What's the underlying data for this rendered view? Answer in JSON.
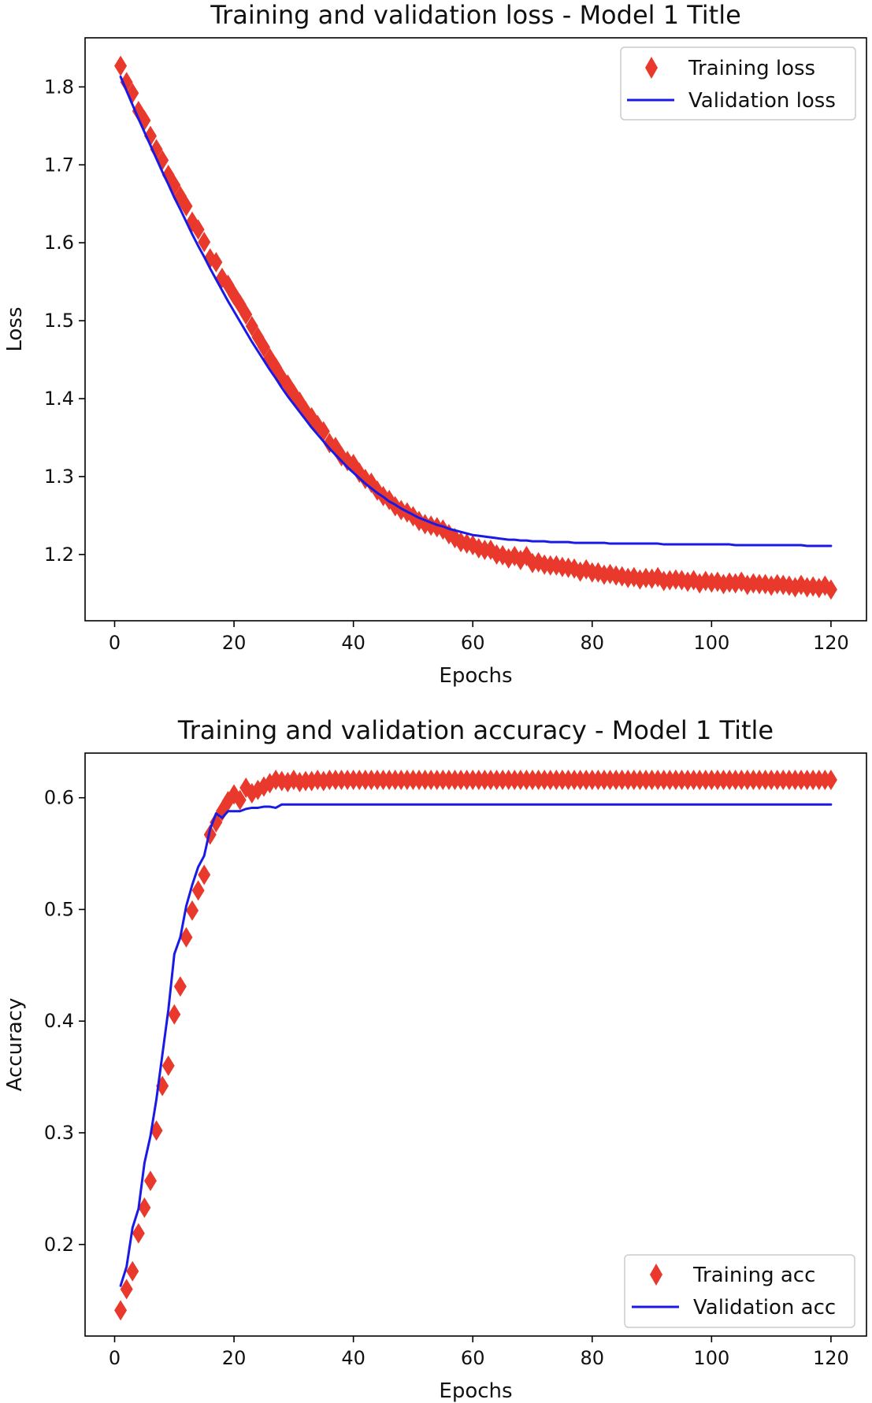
{
  "chart_data": [
    {
      "type": "line",
      "title": "Training and validation loss - Model 1 Title",
      "xlabel": "Epochs",
      "ylabel": "Loss",
      "xlim": [
        -4.95,
        125.95
      ],
      "ylim": [
        1.115,
        1.863
      ],
      "xticks": [
        0,
        20,
        40,
        60,
        80,
        100,
        120
      ],
      "yticks": [
        1.2,
        1.3,
        1.4,
        1.5,
        1.6,
        1.7,
        1.8
      ],
      "xtick_labels": [
        "0",
        "20",
        "40",
        "60",
        "80",
        "100",
        "120"
      ],
      "ytick_labels": [
        "1.2",
        "1.3",
        "1.4",
        "1.5",
        "1.6",
        "1.7",
        "1.8"
      ],
      "grid": false,
      "legend_position": "top-right",
      "series": [
        {
          "name": "Training loss",
          "style": "diamond markers",
          "color": "#e8392c",
          "x": [
            1,
            2,
            3,
            4,
            5,
            6,
            7,
            8,
            9,
            10,
            11,
            12,
            13,
            14,
            15,
            16,
            17,
            18,
            19,
            20,
            21,
            22,
            23,
            24,
            25,
            26,
            27,
            28,
            29,
            30,
            31,
            32,
            33,
            34,
            35,
            36,
            37,
            38,
            39,
            40,
            41,
            42,
            43,
            44,
            45,
            46,
            47,
            48,
            49,
            50,
            51,
            52,
            53,
            54,
            55,
            56,
            57,
            58,
            59,
            60,
            61,
            62,
            63,
            64,
            65,
            66,
            67,
            68,
            69,
            70,
            71,
            72,
            73,
            74,
            75,
            76,
            77,
            78,
            79,
            80,
            81,
            82,
            83,
            84,
            85,
            86,
            87,
            88,
            89,
            90,
            91,
            92,
            93,
            94,
            95,
            96,
            97,
            98,
            99,
            100,
            101,
            102,
            103,
            104,
            105,
            106,
            107,
            108,
            109,
            110,
            111,
            112,
            113,
            114,
            115,
            116,
            117,
            118,
            119,
            120
          ],
          "values": [
            1.827,
            1.806,
            1.792,
            1.769,
            1.757,
            1.737,
            1.72,
            1.706,
            1.687,
            1.674,
            1.66,
            1.647,
            1.627,
            1.617,
            1.601,
            1.58,
            1.575,
            1.555,
            1.546,
            1.533,
            1.521,
            1.508,
            1.493,
            1.479,
            1.466,
            1.452,
            1.44,
            1.427,
            1.418,
            1.406,
            1.396,
            1.384,
            1.376,
            1.366,
            1.358,
            1.343,
            1.338,
            1.326,
            1.32,
            1.316,
            1.305,
            1.297,
            1.292,
            1.282,
            1.275,
            1.27,
            1.262,
            1.257,
            1.254,
            1.249,
            1.243,
            1.239,
            1.237,
            1.235,
            1.232,
            1.226,
            1.221,
            1.216,
            1.214,
            1.212,
            1.208,
            1.206,
            1.206,
            1.2,
            1.199,
            1.195,
            1.198,
            1.193,
            1.198,
            1.189,
            1.19,
            1.187,
            1.186,
            1.186,
            1.184,
            1.183,
            1.182,
            1.178,
            1.181,
            1.177,
            1.177,
            1.174,
            1.175,
            1.173,
            1.172,
            1.17,
            1.171,
            1.168,
            1.17,
            1.169,
            1.171,
            1.166,
            1.167,
            1.168,
            1.167,
            1.165,
            1.167,
            1.163,
            1.166,
            1.164,
            1.165,
            1.162,
            1.164,
            1.163,
            1.165,
            1.161,
            1.163,
            1.162,
            1.162,
            1.16,
            1.162,
            1.161,
            1.16,
            1.158,
            1.161,
            1.158,
            1.159,
            1.157,
            1.16,
            1.155
          ]
        },
        {
          "name": "Validation loss",
          "style": "solid line",
          "color": "#1a1ae6",
          "x": [
            1,
            2,
            3,
            4,
            5,
            6,
            7,
            8,
            9,
            10,
            11,
            12,
            13,
            14,
            15,
            16,
            17,
            18,
            19,
            20,
            21,
            22,
            23,
            24,
            25,
            26,
            27,
            28,
            29,
            30,
            31,
            32,
            33,
            34,
            35,
            36,
            37,
            38,
            39,
            40,
            41,
            42,
            43,
            44,
            45,
            46,
            47,
            48,
            49,
            50,
            51,
            52,
            53,
            54,
            55,
            56,
            57,
            58,
            59,
            60,
            61,
            62,
            63,
            64,
            65,
            66,
            67,
            68,
            69,
            70,
            71,
            72,
            73,
            74,
            75,
            76,
            77,
            78,
            79,
            80,
            81,
            82,
            83,
            84,
            85,
            86,
            87,
            88,
            89,
            90,
            91,
            92,
            93,
            94,
            95,
            96,
            97,
            98,
            99,
            100,
            101,
            102,
            103,
            104,
            105,
            106,
            107,
            108,
            109,
            110,
            111,
            112,
            113,
            114,
            115,
            116,
            117,
            118,
            119,
            120
          ],
          "values": [
            1.813,
            1.795,
            1.777,
            1.759,
            1.742,
            1.725,
            1.708,
            1.691,
            1.675,
            1.658,
            1.643,
            1.627,
            1.611,
            1.596,
            1.582,
            1.567,
            1.553,
            1.539,
            1.525,
            1.512,
            1.499,
            1.486,
            1.473,
            1.461,
            1.449,
            1.437,
            1.426,
            1.414,
            1.403,
            1.393,
            1.383,
            1.373,
            1.363,
            1.354,
            1.345,
            1.336,
            1.328,
            1.32,
            1.312,
            1.305,
            1.298,
            1.291,
            1.285,
            1.279,
            1.274,
            1.268,
            1.264,
            1.259,
            1.255,
            1.251,
            1.247,
            1.244,
            1.241,
            1.238,
            1.236,
            1.233,
            1.231,
            1.229,
            1.227,
            1.225,
            1.224,
            1.223,
            1.222,
            1.221,
            1.22,
            1.219,
            1.219,
            1.218,
            1.218,
            1.217,
            1.217,
            1.217,
            1.216,
            1.216,
            1.216,
            1.216,
            1.215,
            1.215,
            1.215,
            1.215,
            1.215,
            1.215,
            1.214,
            1.214,
            1.214,
            1.214,
            1.214,
            1.214,
            1.214,
            1.214,
            1.214,
            1.213,
            1.213,
            1.213,
            1.213,
            1.213,
            1.213,
            1.213,
            1.213,
            1.213,
            1.213,
            1.213,
            1.213,
            1.212,
            1.212,
            1.212,
            1.212,
            1.212,
            1.212,
            1.212,
            1.212,
            1.212,
            1.212,
            1.212,
            1.212,
            1.211,
            1.211,
            1.211,
            1.211,
            1.211
          ]
        }
      ]
    },
    {
      "type": "line",
      "title": "Training and validation accuracy - Model 1 Title",
      "xlabel": "Epochs",
      "ylabel": "Accuracy",
      "xlim": [
        -4.95,
        125.95
      ],
      "ylim": [
        0.118,
        0.64
      ],
      "xticks": [
        0,
        20,
        40,
        60,
        80,
        100,
        120
      ],
      "yticks": [
        0.2,
        0.3,
        0.4,
        0.5,
        0.6
      ],
      "xtick_labels": [
        "0",
        "20",
        "40",
        "60",
        "80",
        "100",
        "120"
      ],
      "ytick_labels": [
        "0.2",
        "0.3",
        "0.4",
        "0.5",
        "0.6"
      ],
      "grid": false,
      "legend_position": "bottom-right",
      "series": [
        {
          "name": "Training acc",
          "style": "diamond markers",
          "color": "#e8392c",
          "x": [
            1,
            2,
            3,
            4,
            5,
            6,
            7,
            8,
            9,
            10,
            11,
            12,
            13,
            14,
            15,
            16,
            17,
            18,
            19,
            20,
            21,
            22,
            23,
            24,
            25,
            26,
            27,
            28,
            29,
            30,
            31,
            32,
            33,
            34,
            35,
            36,
            37,
            38,
            39,
            40,
            41,
            42,
            43,
            44,
            45,
            46,
            47,
            48,
            49,
            50,
            51,
            52,
            53,
            54,
            55,
            56,
            57,
            58,
            59,
            60,
            61,
            62,
            63,
            64,
            65,
            66,
            67,
            68,
            69,
            70,
            71,
            72,
            73,
            74,
            75,
            76,
            77,
            78,
            79,
            80,
            81,
            82,
            83,
            84,
            85,
            86,
            87,
            88,
            89,
            90,
            91,
            92,
            93,
            94,
            95,
            96,
            97,
            98,
            99,
            100,
            101,
            102,
            103,
            104,
            105,
            106,
            107,
            108,
            109,
            110,
            111,
            112,
            113,
            114,
            115,
            116,
            117,
            118,
            119,
            120
          ],
          "values": [
            0.141,
            0.16,
            0.176,
            0.21,
            0.233,
            0.257,
            0.302,
            0.342,
            0.36,
            0.406,
            0.431,
            0.475,
            0.499,
            0.517,
            0.531,
            0.567,
            0.578,
            0.588,
            0.597,
            0.603,
            0.598,
            0.609,
            0.604,
            0.607,
            0.61,
            0.613,
            0.616,
            0.615,
            0.614,
            0.616,
            0.614,
            0.615,
            0.615,
            0.616,
            0.615,
            0.616,
            0.616,
            0.616,
            0.616,
            0.616,
            0.616,
            0.616,
            0.616,
            0.616,
            0.616,
            0.616,
            0.616,
            0.616,
            0.616,
            0.616,
            0.616,
            0.616,
            0.616,
            0.616,
            0.616,
            0.616,
            0.616,
            0.616,
            0.616,
            0.616,
            0.616,
            0.616,
            0.616,
            0.616,
            0.616,
            0.616,
            0.616,
            0.616,
            0.616,
            0.616,
            0.616,
            0.616,
            0.616,
            0.616,
            0.616,
            0.616,
            0.616,
            0.616,
            0.616,
            0.616,
            0.616,
            0.616,
            0.616,
            0.616,
            0.616,
            0.616,
            0.616,
            0.616,
            0.616,
            0.616,
            0.616,
            0.616,
            0.616,
            0.616,
            0.616,
            0.616,
            0.616,
            0.616,
            0.616,
            0.616,
            0.616,
            0.616,
            0.616,
            0.616,
            0.616,
            0.616,
            0.616,
            0.616,
            0.616,
            0.616,
            0.616,
            0.616,
            0.616,
            0.616,
            0.616,
            0.616,
            0.616,
            0.616,
            0.616,
            0.616
          ]
        },
        {
          "name": "Validation acc",
          "style": "solid line",
          "color": "#1a1ae6",
          "x": [
            1,
            2,
            3,
            4,
            5,
            6,
            7,
            8,
            9,
            10,
            11,
            12,
            13,
            14,
            15,
            16,
            17,
            18,
            19,
            20,
            21,
            22,
            23,
            24,
            25,
            26,
            27,
            28,
            29,
            30,
            31,
            32,
            33,
            34,
            35,
            36,
            37,
            38,
            39,
            40,
            41,
            42,
            43,
            44,
            45,
            46,
            47,
            48,
            49,
            50,
            51,
            52,
            53,
            54,
            55,
            56,
            57,
            58,
            59,
            60,
            61,
            62,
            63,
            64,
            65,
            66,
            67,
            68,
            69,
            70,
            71,
            72,
            73,
            74,
            75,
            76,
            77,
            78,
            79,
            80,
            81,
            82,
            83,
            84,
            85,
            86,
            87,
            88,
            89,
            90,
            91,
            92,
            93,
            94,
            95,
            96,
            97,
            98,
            99,
            100,
            101,
            102,
            103,
            104,
            105,
            106,
            107,
            108,
            109,
            110,
            111,
            112,
            113,
            114,
            115,
            116,
            117,
            118,
            119,
            120
          ],
          "values": [
            0.163,
            0.18,
            0.215,
            0.232,
            0.273,
            0.297,
            0.33,
            0.37,
            0.41,
            0.46,
            0.475,
            0.503,
            0.522,
            0.538,
            0.548,
            0.572,
            0.586,
            0.582,
            0.588,
            0.588,
            0.588,
            0.59,
            0.591,
            0.591,
            0.592,
            0.592,
            0.591,
            0.594,
            0.594,
            0.594,
            0.594,
            0.594,
            0.594,
            0.594,
            0.594,
            0.594,
            0.594,
            0.594,
            0.594,
            0.594,
            0.594,
            0.594,
            0.594,
            0.594,
            0.594,
            0.594,
            0.594,
            0.594,
            0.594,
            0.594,
            0.594,
            0.594,
            0.594,
            0.594,
            0.594,
            0.594,
            0.594,
            0.594,
            0.594,
            0.594,
            0.594,
            0.594,
            0.594,
            0.594,
            0.594,
            0.594,
            0.594,
            0.594,
            0.594,
            0.594,
            0.594,
            0.594,
            0.594,
            0.594,
            0.594,
            0.594,
            0.594,
            0.594,
            0.594,
            0.594,
            0.594,
            0.594,
            0.594,
            0.594,
            0.594,
            0.594,
            0.594,
            0.594,
            0.594,
            0.594,
            0.594,
            0.594,
            0.594,
            0.594,
            0.594,
            0.594,
            0.594,
            0.594,
            0.594,
            0.594,
            0.594,
            0.594,
            0.594,
            0.594,
            0.594,
            0.594,
            0.594,
            0.594,
            0.594,
            0.594,
            0.594,
            0.594,
            0.594,
            0.594,
            0.594,
            0.594,
            0.594,
            0.594,
            0.594,
            0.594
          ]
        }
      ]
    }
  ]
}
